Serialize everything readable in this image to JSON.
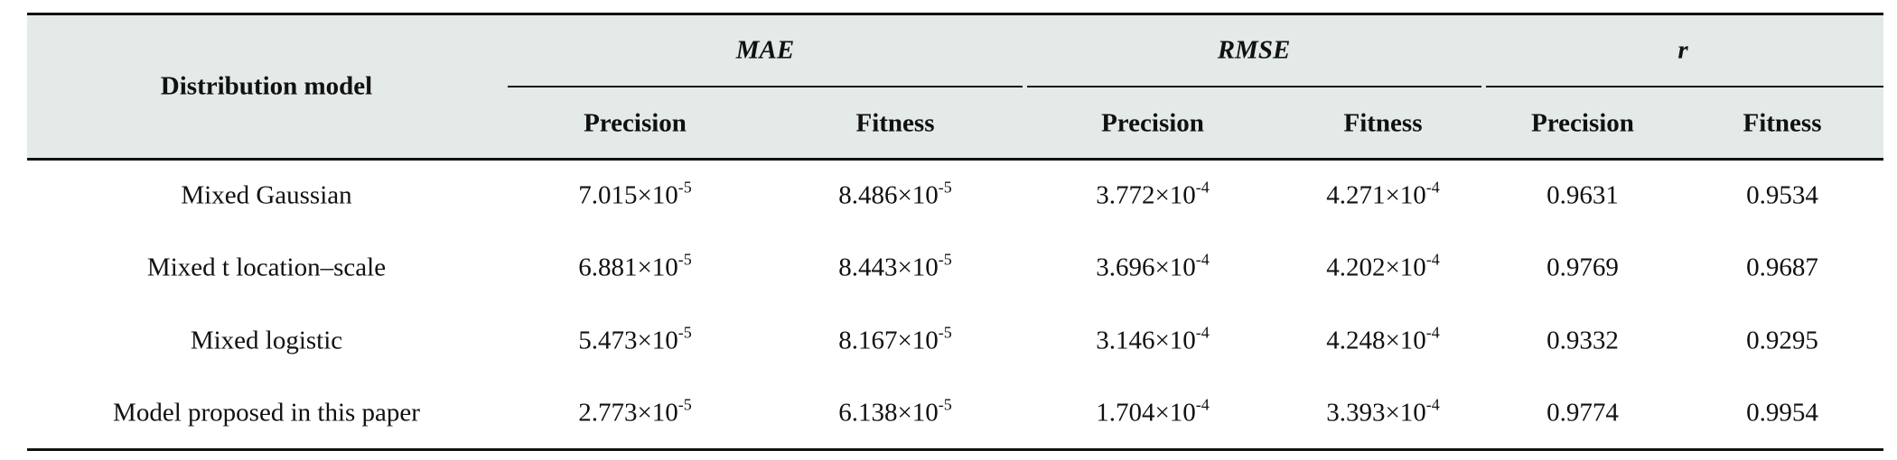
{
  "table": {
    "header": {
      "first": "Distribution model",
      "groups": [
        "MAE",
        "RMSE",
        "r"
      ],
      "subheaders": [
        "Precision",
        "Fitness",
        "Precision",
        "Fitness",
        "Precision",
        "Fitness"
      ]
    },
    "rows": [
      {
        "model": "Mixed Gaussian",
        "cells": [
          {
            "base": "7.015×10",
            "sup": "-5"
          },
          {
            "base": "8.486×10",
            "sup": "-5"
          },
          {
            "base": "3.772×10",
            "sup": "-4"
          },
          {
            "base": "4.271×10",
            "sup": "-4"
          },
          "0.9631",
          "0.9534"
        ]
      },
      {
        "model": "Mixed t location–scale",
        "cells": [
          {
            "base": "6.881×10",
            "sup": "-5"
          },
          {
            "base": "8.443×10",
            "sup": "-5"
          },
          {
            "base": "3.696×10",
            "sup": "-4"
          },
          {
            "base": "4.202×10",
            "sup": "-4"
          },
          "0.9769",
          "0.9687"
        ]
      },
      {
        "model": "Mixed logistic",
        "cells": [
          {
            "base": "5.473×10",
            "sup": "-5"
          },
          {
            "base": "8.167×10",
            "sup": "-5"
          },
          {
            "base": "3.146×10",
            "sup": "-4"
          },
          {
            "base": "4.248×10",
            "sup": "-4"
          },
          "0.9332",
          "0.9295"
        ]
      },
      {
        "model": "Model proposed in this paper",
        "cells": [
          {
            "base": "2.773×10",
            "sup": "-5"
          },
          {
            "base": "6.138×10",
            "sup": "-5"
          },
          {
            "base": "1.704×10",
            "sup": "-4"
          },
          {
            "base": "3.393×10",
            "sup": "-4"
          },
          "0.9774",
          "0.9954"
        ]
      }
    ]
  }
}
